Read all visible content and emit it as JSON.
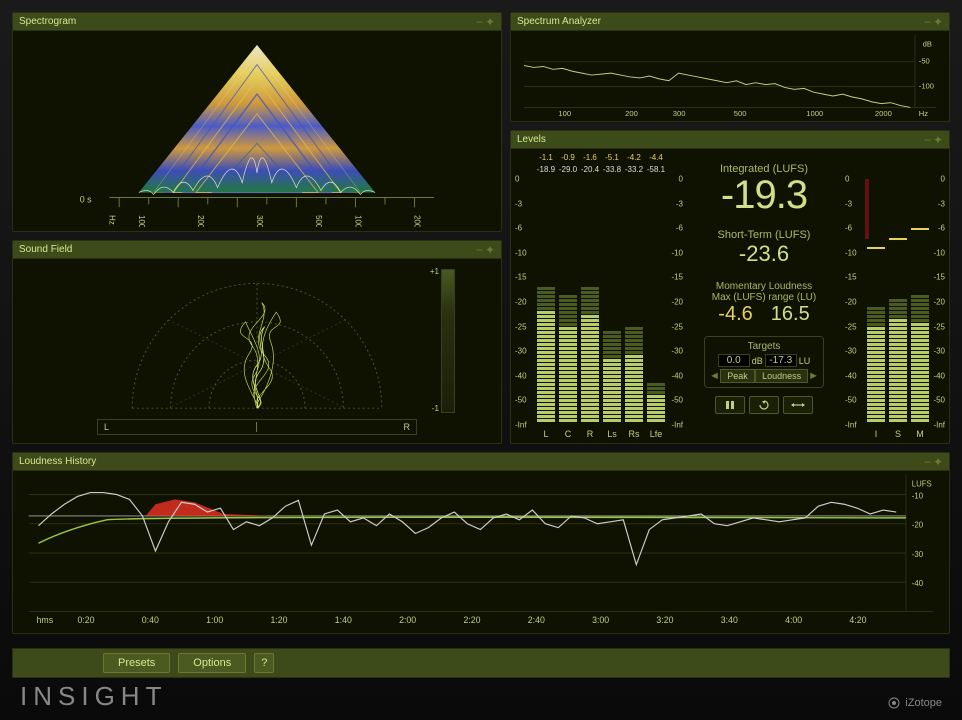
{
  "app": {
    "brand": "INSIGHT",
    "vendor": "iZotope"
  },
  "panels": {
    "spectrogram": {
      "title": "Spectrogram",
      "time_label": "0 s",
      "freq_ticks": [
        "Hz",
        "100",
        "",
        "200",
        "",
        "300",
        "",
        "500",
        "",
        "1000",
        "",
        "2000"
      ]
    },
    "soundfield": {
      "title": "Sound Field",
      "scale_top": "+1",
      "scale_bot": "-1",
      "left": "L",
      "right": "R"
    },
    "spectrum": {
      "title": "Spectrum Analyzer",
      "y_unit": "dB",
      "y_ticks": [
        "-50",
        "-100"
      ],
      "x_ticks": [
        "100",
        "200",
        "300",
        "500",
        "1000",
        "2000",
        "Hz"
      ],
      "curve_y": [
        32,
        34,
        33,
        36,
        35,
        38,
        40,
        42,
        41,
        40,
        42,
        44,
        45,
        43,
        46,
        48,
        40,
        42,
        44,
        46,
        48,
        50,
        48,
        52,
        50,
        52,
        51,
        55,
        57,
        56,
        60,
        62,
        64,
        62,
        65,
        67,
        70,
        72,
        71,
        74,
        76
      ]
    },
    "levels": {
      "title": "Levels",
      "top_yellow": [
        "-1.1",
        "-0.9",
        "-1.6",
        "-5.1",
        "-4.2",
        "-4.4"
      ],
      "top_white": [
        "-18.9",
        "-29.0",
        "-20.4",
        "-33.8",
        "-33.2",
        "-58.1"
      ],
      "channels": [
        "L",
        "C",
        "R",
        "Ls",
        "Rs",
        "Lfe"
      ],
      "meter_values": [
        68,
        60,
        67,
        40,
        42,
        16
      ],
      "meter_peaks": [
        85,
        78,
        84,
        56,
        58,
        24
      ],
      "scale": [
        "0",
        "-3",
        "-6",
        "-10",
        "-15",
        "-20",
        "-25",
        "-30",
        "-40",
        "-50",
        "-Inf"
      ],
      "integrated_label": "Integrated (LUFS)",
      "integrated": "-19.3",
      "short_term_label": "Short-Term (LUFS)",
      "short_term": "-23.6",
      "momentary_label_1": "Momentary Loudness",
      "momentary_label_2": "Max (LUFS) range (LU)",
      "momentary_max": "-4.6",
      "momentary_range": "16.5",
      "targets_title": "Targets",
      "target_db": "0.0",
      "target_lu": "-17.3",
      "db_unit": "dB",
      "lu_unit": "LU",
      "peak_btn": "Peak",
      "loudness_btn": "Loudness",
      "ism_labels": [
        "I",
        "S",
        "M"
      ],
      "ism_values": [
        58,
        65,
        62
      ],
      "ism_peaks": [
        72,
        76,
        80
      ]
    },
    "history": {
      "title": "Loudness History",
      "y_unit": "LUFS",
      "y_ticks": [
        "-10",
        "-20",
        "-30",
        "-40"
      ],
      "time_label": "hms",
      "time_ticks": [
        "0:20",
        "0:40",
        "1:00",
        "1:20",
        "1:40",
        "2:00",
        "2:20",
        "2:40",
        "3:00",
        "3:20",
        "3:40",
        "4:00",
        "4:20"
      ],
      "curve": [
        52,
        40,
        30,
        22,
        18,
        18,
        20,
        25,
        42,
        78,
        48,
        28,
        30,
        38,
        34,
        56,
        48,
        52,
        44,
        32,
        26,
        72,
        40,
        36,
        48,
        44,
        52,
        40,
        48,
        60,
        54,
        44,
        38,
        50,
        56,
        44,
        40,
        46,
        36,
        50,
        54,
        42,
        44,
        50,
        48,
        46,
        92,
        56,
        46,
        44,
        42,
        40,
        50,
        52,
        48,
        44,
        46,
        48,
        46,
        44,
        32,
        28,
        30,
        34,
        40,
        36,
        38
      ]
    }
  },
  "footer": {
    "presets": "Presets",
    "options": "Options",
    "help": "?"
  },
  "colors": {
    "accent": "#c0d080",
    "meter": "#b8cc6a",
    "meter_dark": "#5a6a2a",
    "panel": "#0f1200",
    "header": "#3d4a1a",
    "yellow": "#e8d060",
    "red": "#e03020"
  }
}
